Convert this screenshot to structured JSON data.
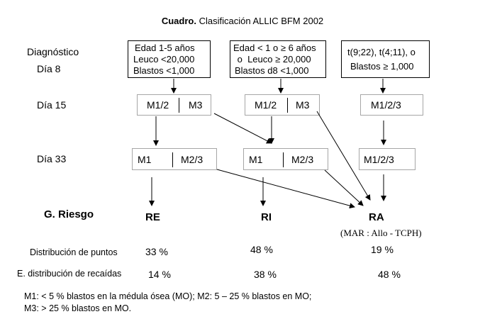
{
  "title": {
    "bold": "Cuadro.",
    "text": "Clasificación ALLIC BFM 2002"
  },
  "row_labels": {
    "diagnostico": "Diagnóstico",
    "dia8": "Día  8",
    "dia15": "Día 15",
    "dia33": "Día 33",
    "riesgo": "G. Riesgo",
    "puntos": "Distribución de puntos",
    "recaidas": "E. distribución de recaídas"
  },
  "diagnosis_boxes": [
    {
      "lines": [
        "Edad 1-5 años",
        "Leuco  <20,000",
        "Blastos <1,000"
      ]
    },
    {
      "lines": [
        "Edad < 1 o ≥ 6 años",
        " o  Leuco ≥ 20,000",
        "Blastos  d8 <1,000"
      ]
    },
    {
      "lines": [
        "t(9;22), t(4;11), o",
        "Blastos  ≥ 1,000"
      ]
    }
  ],
  "day15": {
    "col1": [
      "M1/2",
      "M3"
    ],
    "col2": [
      "M1/2",
      "M3"
    ],
    "col3": [
      "M1/2/3"
    ]
  },
  "day33": {
    "col1": [
      "M1",
      "M2/3"
    ],
    "col2": [
      "M1",
      "M2/3"
    ],
    "col3": [
      "M1/2/3"
    ]
  },
  "risk_groups": [
    "RE",
    "RI",
    "RA"
  ],
  "ra_note": "(MAR : Allo - TCPH)",
  "puntos": [
    "33 %",
    "48 %",
    "19 %"
  ],
  "recaidas": [
    "14 %",
    "38 %",
    "48 %"
  ],
  "footnote": [
    "M1: < 5 % blastos en la médula ósea (MO); M2: 5 – 25 % blastos en MO;",
    "M3: > 25 % blastos en MO."
  ]
}
